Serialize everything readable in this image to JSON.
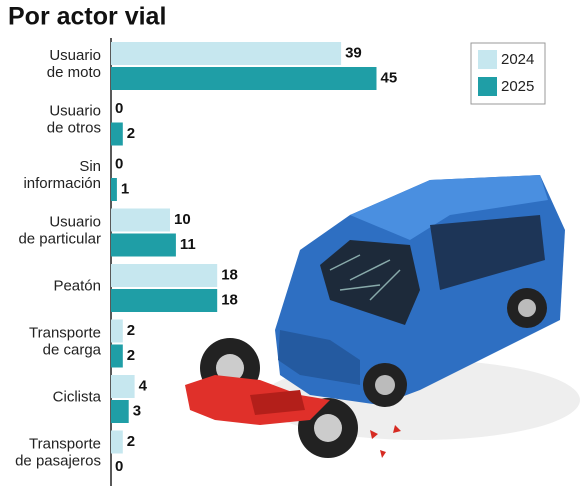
{
  "chart_data": {
    "type": "bar",
    "orientation": "horizontal",
    "title": "Por actor vial",
    "categories": [
      "Usuario\nde moto",
      "Usuario\nde otros",
      "Sin\ninformación",
      "Usuario\nde particular",
      "Peatón",
      "Transporte\nde carga",
      "Ciclista",
      "Transporte\nde pasajeros"
    ],
    "series": [
      {
        "name": "2024",
        "color": "#c6e7ef",
        "values": [
          39,
          0,
          0,
          10,
          18,
          2,
          4,
          2
        ]
      },
      {
        "name": "2025",
        "color": "#1f9ea6",
        "values": [
          45,
          2,
          1,
          11,
          18,
          2,
          3,
          0
        ]
      }
    ],
    "legend": "top-right"
  }
}
